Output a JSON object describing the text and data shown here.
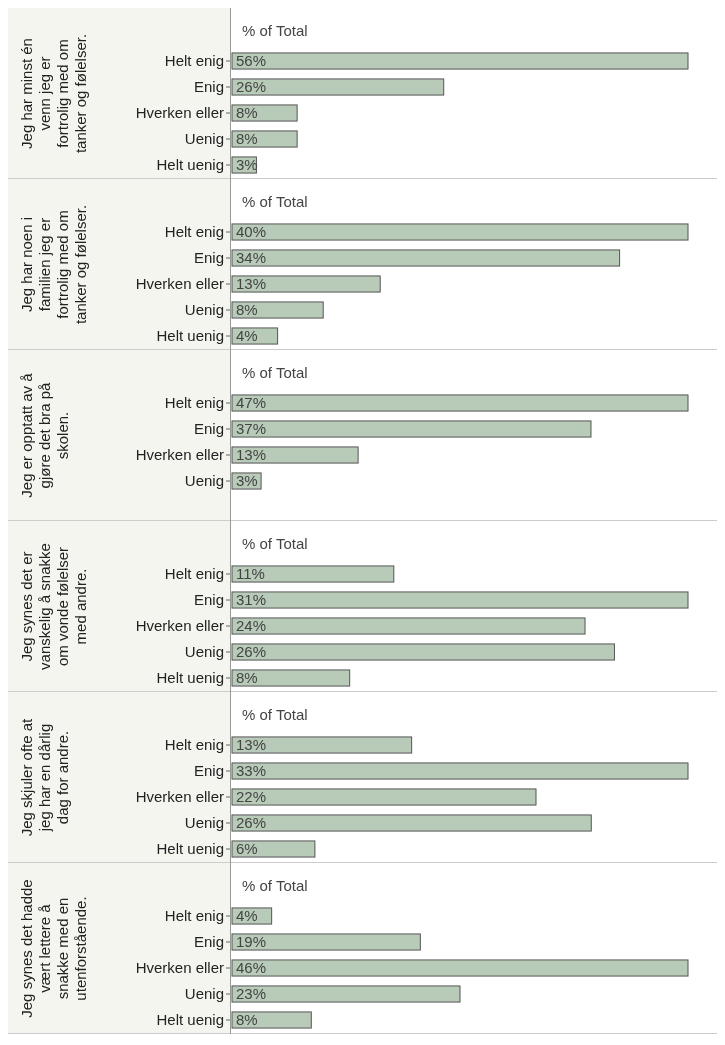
{
  "chart_data": [
    {
      "type": "bar",
      "orientation": "horizontal",
      "ylabel": "Jeg har minst én venn jeg er fortrolig med om tanker og følelser.",
      "xlabel": "% of Total",
      "categories": [
        "Helt enig",
        "Enig",
        "Hverken eller",
        "Uenig",
        "Helt uenig"
      ],
      "values": [
        56,
        26,
        8,
        8,
        3
      ],
      "value_labels": [
        "56%",
        "26%",
        "8%",
        "8%",
        "3%"
      ],
      "color": "#b8cab8"
    },
    {
      "type": "bar",
      "orientation": "horizontal",
      "ylabel": "Jeg har noen i familien jeg er fortrolig med om tanker og følelser.",
      "xlabel": "% of Total",
      "categories": [
        "Helt enig",
        "Enig",
        "Hverken eller",
        "Uenig",
        "Helt uenig"
      ],
      "values": [
        40,
        34,
        13,
        8,
        4
      ],
      "value_labels": [
        "40%",
        "34%",
        "13%",
        "8%",
        "4%"
      ],
      "color": "#b8cab8"
    },
    {
      "type": "bar",
      "orientation": "horizontal",
      "ylabel": "Jeg er opptatt av å gjøre det bra på skolen.",
      "xlabel": "% of Total",
      "categories": [
        "Helt enig",
        "Enig",
        "Hverken eller",
        "Uenig"
      ],
      "values": [
        47,
        37,
        13,
        3
      ],
      "value_labels": [
        "47%",
        "37%",
        "13%",
        "3%"
      ],
      "color": "#b8cab8"
    },
    {
      "type": "bar",
      "orientation": "horizontal",
      "ylabel": "Jeg synes det er vanskelig å snakke om vonde følelser med andre.",
      "xlabel": "% of Total",
      "categories": [
        "Helt enig",
        "Enig",
        "Hverken eller",
        "Uenig",
        "Helt uenig"
      ],
      "values": [
        11,
        31,
        24,
        26,
        8
      ],
      "value_labels": [
        "11%",
        "31%",
        "24%",
        "26%",
        "8%"
      ],
      "color": "#b8cab8"
    },
    {
      "type": "bar",
      "orientation": "horizontal",
      "ylabel": "Jeg skjuler ofte at jeg har en dårlig dag for andre.",
      "xlabel": "% of Total",
      "categories": [
        "Helt enig",
        "Enig",
        "Hverken eller",
        "Uenig",
        "Helt uenig"
      ],
      "values": [
        13,
        33,
        22,
        26,
        6
      ],
      "value_labels": [
        "13%",
        "33%",
        "22%",
        "26%",
        "6%"
      ],
      "color": "#b8cab8"
    },
    {
      "type": "bar",
      "orientation": "horizontal",
      "ylabel": "Jeg synes det hadde vært lettere å snakke med en utenforstående.",
      "xlabel": "% of Total",
      "categories": [
        "Helt enig",
        "Enig",
        "Hverken eller",
        "Uenig",
        "Helt uenig"
      ],
      "values": [
        4,
        19,
        46,
        23,
        8
      ],
      "value_labels": [
        "4%",
        "19%",
        "46%",
        "23%",
        "8%"
      ],
      "color": "#b8cab8"
    }
  ]
}
